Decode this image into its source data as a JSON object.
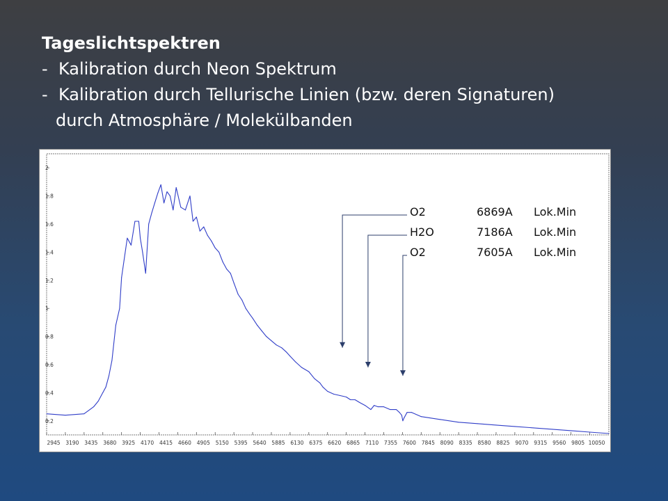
{
  "slide": {
    "title": "Tageslichtspektren",
    "bullet_dash": "-",
    "bullets": [
      "Kalibration durch Neon Spektrum",
      "Kalibration durch Tellurische Linien (bzw. deren Signaturen)"
    ],
    "continuation": "durch Atmosphäre / Molekülbanden"
  },
  "chart_data": {
    "type": "line",
    "line_color": "#2f3dc8",
    "xlim": [
      2945,
      10300
    ],
    "ylim": [
      0.1,
      2.1
    ],
    "x_ticks": [
      2945,
      3190,
      3435,
      3680,
      3925,
      4170,
      4415,
      4660,
      4905,
      5150,
      5395,
      5640,
      5885,
      6130,
      6375,
      6620,
      6865,
      7110,
      7355,
      7600,
      7845,
      8090,
      8335,
      8580,
      8825,
      9070,
      9315,
      9560,
      9805,
      10050
    ],
    "y_ticks": [
      "0.2",
      "0.4",
      "0.6",
      "0.8",
      "1",
      "1.2",
      "1.4",
      "1.6",
      "1.8",
      "2"
    ],
    "series": [
      {
        "x": [
          2945,
          3190,
          3435,
          3560,
          3620,
          3680,
          3720,
          3760,
          3800,
          3850,
          3900,
          3925,
          3960,
          4000,
          4050,
          4100,
          4150,
          4170,
          4200,
          4240,
          4280,
          4320,
          4360,
          4400,
          4440,
          4480,
          4520,
          4560,
          4600,
          4640,
          4700,
          4760,
          4820,
          4860,
          4905,
          4950,
          5000,
          5050,
          5100,
          5150,
          5200,
          5250,
          5300,
          5350,
          5395,
          5450,
          5500,
          5550,
          5600,
          5640,
          5700,
          5760,
          5820,
          5885,
          5950,
          6020,
          6080,
          6130,
          6200,
          6280,
          6375,
          6450,
          6520,
          6560,
          6620,
          6700,
          6780,
          6865,
          6920,
          6980,
          7040,
          7110,
          7186,
          7230,
          7280,
          7355,
          7440,
          7520,
          7560,
          7590,
          7605,
          7620,
          7660,
          7720,
          7845,
          8090,
          8335,
          8580,
          8825,
          9070,
          9315,
          9560,
          9805,
          10050,
          10300
        ],
        "y": [
          0.25,
          0.24,
          0.25,
          0.3,
          0.34,
          0.4,
          0.44,
          0.52,
          0.63,
          0.88,
          1.0,
          1.22,
          1.35,
          1.5,
          1.45,
          1.62,
          1.62,
          1.5,
          1.4,
          1.25,
          1.6,
          1.68,
          1.75,
          1.82,
          1.88,
          1.75,
          1.83,
          1.8,
          1.7,
          1.86,
          1.72,
          1.7,
          1.8,
          1.62,
          1.65,
          1.55,
          1.58,
          1.52,
          1.48,
          1.43,
          1.4,
          1.33,
          1.28,
          1.25,
          1.18,
          1.1,
          1.06,
          1.0,
          0.96,
          0.93,
          0.88,
          0.84,
          0.8,
          0.77,
          0.74,
          0.72,
          0.69,
          0.66,
          0.62,
          0.58,
          0.55,
          0.5,
          0.47,
          0.44,
          0.41,
          0.39,
          0.38,
          0.37,
          0.35,
          0.35,
          0.33,
          0.31,
          0.28,
          0.31,
          0.3,
          0.3,
          0.28,
          0.28,
          0.26,
          0.24,
          0.2,
          0.22,
          0.26,
          0.26,
          0.23,
          0.21,
          0.19,
          0.18,
          0.17,
          0.16,
          0.15,
          0.14,
          0.13,
          0.12,
          0.11
        ]
      }
    ],
    "annotations": [
      {
        "molecule": "O2",
        "wavelength": "6869A",
        "label": "Lok.Min",
        "x": 6869,
        "y_end": 0.72
      },
      {
        "molecule": "H2O",
        "wavelength": "7186A",
        "label": "Lok.Min",
        "x": 7186,
        "y_end": 0.58
      },
      {
        "molecule": "O2",
        "wavelength": "7605A",
        "label": "Lok.Min",
        "x": 7605,
        "y_end": 0.52
      }
    ]
  }
}
